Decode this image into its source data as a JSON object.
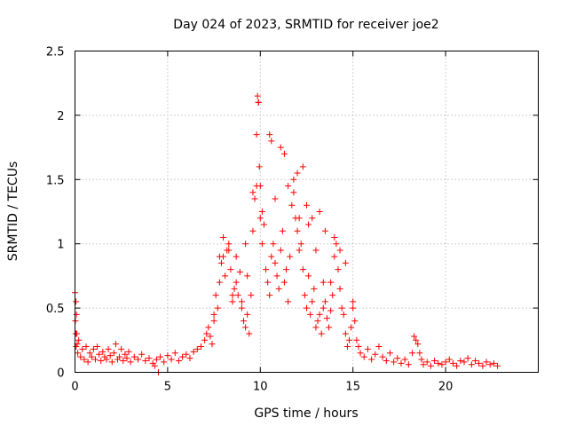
{
  "chart_data": {
    "type": "scatter",
    "title": "Day 024 of 2023, SRMTID for receiver joe2",
    "xlabel": "GPS time / hours",
    "ylabel": "SRMTID / TECUs",
    "xlim": [
      0,
      25
    ],
    "ylim": [
      0,
      2.5
    ],
    "xticks": [
      0,
      5,
      10,
      15,
      20
    ],
    "xtick_labels": [
      "0",
      "5",
      "10",
      "15",
      "20"
    ],
    "yticks": [
      0,
      0.5,
      1,
      1.5,
      2,
      2.5
    ],
    "ytick_labels": [
      "0",
      "0.5",
      "1",
      "1.5",
      "2",
      "2.5"
    ],
    "grid": true,
    "marker": "+",
    "color": "#ff0000",
    "series": [
      {
        "name": "SRMTID",
        "x": [
          0.0,
          0.05,
          0.08,
          0.1,
          0.12,
          0.15,
          0.2,
          0.3,
          0.4,
          0.5,
          0.6,
          0.7,
          0.8,
          0.9,
          1.0,
          1.1,
          1.2,
          1.3,
          1.4,
          1.5,
          1.6,
          1.7,
          1.8,
          1.9,
          2.0,
          2.1,
          2.2,
          2.3,
          2.4,
          2.5,
          2.6,
          2.7,
          2.8,
          2.9,
          3.0,
          3.2,
          3.4,
          3.6,
          3.8,
          4.0,
          4.2,
          4.4,
          4.5,
          4.6,
          4.8,
          5.0,
          5.2,
          5.4,
          5.6,
          5.8,
          6.0,
          6.2,
          6.4,
          6.6,
          6.8,
          7.0,
          7.1,
          7.2,
          7.3,
          7.4,
          7.5,
          7.6,
          7.7,
          7.8,
          7.9,
          8.0,
          8.1,
          8.2,
          8.3,
          8.4,
          8.5,
          8.6,
          8.7,
          8.8,
          8.9,
          9.0,
          9.1,
          9.2,
          9.3,
          9.4,
          9.5,
          9.6,
          9.7,
          9.8,
          9.85,
          9.9,
          9.95,
          10.0,
          10.1,
          10.2,
          10.3,
          10.4,
          10.5,
          10.6,
          10.7,
          10.8,
          10.9,
          11.0,
          11.1,
          11.2,
          11.3,
          11.4,
          11.5,
          11.6,
          11.7,
          11.8,
          11.9,
          12.0,
          12.1,
          12.2,
          12.3,
          12.4,
          12.5,
          12.6,
          12.7,
          12.8,
          12.9,
          13.0,
          13.1,
          13.2,
          13.3,
          13.4,
          13.5,
          13.6,
          13.7,
          13.8,
          13.9,
          14.0,
          14.1,
          14.2,
          14.3,
          14.4,
          14.5,
          14.6,
          14.7,
          14.8,
          14.9,
          15.0,
          15.1,
          15.2,
          15.3,
          15.4,
          15.6,
          15.8,
          16.0,
          16.2,
          16.4,
          16.6,
          16.8,
          17.0,
          17.2,
          17.4,
          17.6,
          17.8,
          18.0,
          18.2,
          18.3,
          18.4,
          18.5,
          18.6,
          18.7,
          18.8,
          19.0,
          19.2,
          19.4,
          19.6,
          19.8,
          20.0,
          20.2,
          20.4,
          20.6,
          20.8,
          21.0,
          21.2,
          21.4,
          21.6,
          21.8,
          22.0,
          22.2,
          22.4,
          22.6,
          22.8,
          9.8,
          9.9,
          10.0,
          10.1,
          10.5,
          10.6,
          11.3,
          11.5,
          12.0,
          12.3,
          12.5,
          12.8,
          13.2,
          13.5,
          14.0,
          14.3,
          8.0,
          8.3,
          8.7,
          9.3,
          9.6,
          10.8,
          11.8,
          13.8,
          14.6,
          15.0,
          7.5,
          7.8,
          8.5,
          9.0,
          0.02,
          0.04,
          0.06,
          4.3,
          9.2,
          11.1,
          12.1,
          12.6,
          13.0,
          13.4
        ],
        "y": [
          0.62,
          0.55,
          0.45,
          0.3,
          0.22,
          0.15,
          0.25,
          0.12,
          0.18,
          0.1,
          0.2,
          0.08,
          0.15,
          0.12,
          0.18,
          0.1,
          0.2,
          0.14,
          0.09,
          0.16,
          0.12,
          0.1,
          0.18,
          0.13,
          0.08,
          0.15,
          0.22,
          0.1,
          0.12,
          0.18,
          0.09,
          0.14,
          0.11,
          0.16,
          0.08,
          0.12,
          0.1,
          0.14,
          0.09,
          0.11,
          0.07,
          0.1,
          0.0,
          0.12,
          0.08,
          0.13,
          0.1,
          0.15,
          0.09,
          0.12,
          0.14,
          0.11,
          0.16,
          0.18,
          0.2,
          0.25,
          0.3,
          0.35,
          0.28,
          0.22,
          0.45,
          0.6,
          0.5,
          0.7,
          0.85,
          0.9,
          0.75,
          0.95,
          1.0,
          0.8,
          0.55,
          0.65,
          0.7,
          0.6,
          0.78,
          0.5,
          0.4,
          0.35,
          0.45,
          0.3,
          0.6,
          1.1,
          1.35,
          1.45,
          2.15,
          2.1,
          1.6,
          1.45,
          1.25,
          1.15,
          0.8,
          0.7,
          0.6,
          0.9,
          1.0,
          0.85,
          0.75,
          0.65,
          0.95,
          1.1,
          0.7,
          0.8,
          0.55,
          0.9,
          1.3,
          1.4,
          1.2,
          1.1,
          0.95,
          1.0,
          0.8,
          0.6,
          0.5,
          0.75,
          0.45,
          0.55,
          0.65,
          0.35,
          0.4,
          0.45,
          0.3,
          0.5,
          0.55,
          0.42,
          0.35,
          0.48,
          0.6,
          0.9,
          1.0,
          0.8,
          0.65,
          0.5,
          0.45,
          0.3,
          0.2,
          0.25,
          0.35,
          0.55,
          0.4,
          0.25,
          0.2,
          0.15,
          0.12,
          0.18,
          0.1,
          0.14,
          0.2,
          0.12,
          0.09,
          0.15,
          0.08,
          0.11,
          0.07,
          0.1,
          0.06,
          0.15,
          0.28,
          0.25,
          0.22,
          0.15,
          0.1,
          0.06,
          0.08,
          0.05,
          0.09,
          0.07,
          0.06,
          0.08,
          0.1,
          0.07,
          0.05,
          0.09,
          0.08,
          0.11,
          0.06,
          0.09,
          0.07,
          0.05,
          0.08,
          0.06,
          0.07,
          0.05,
          1.85,
          2.1,
          1.2,
          1.0,
          1.85,
          1.8,
          1.7,
          1.45,
          1.55,
          1.6,
          1.3,
          1.2,
          1.25,
          1.1,
          1.05,
          0.95,
          1.05,
          0.95,
          0.9,
          0.75,
          1.4,
          1.35,
          1.5,
          0.7,
          0.85,
          0.5,
          0.4,
          0.9,
          0.6,
          0.55,
          0.4,
          0.3,
          0.2,
          0.05,
          1.0,
          1.75,
          1.2,
          1.15,
          0.95,
          0.7
        ]
      }
    ]
  }
}
